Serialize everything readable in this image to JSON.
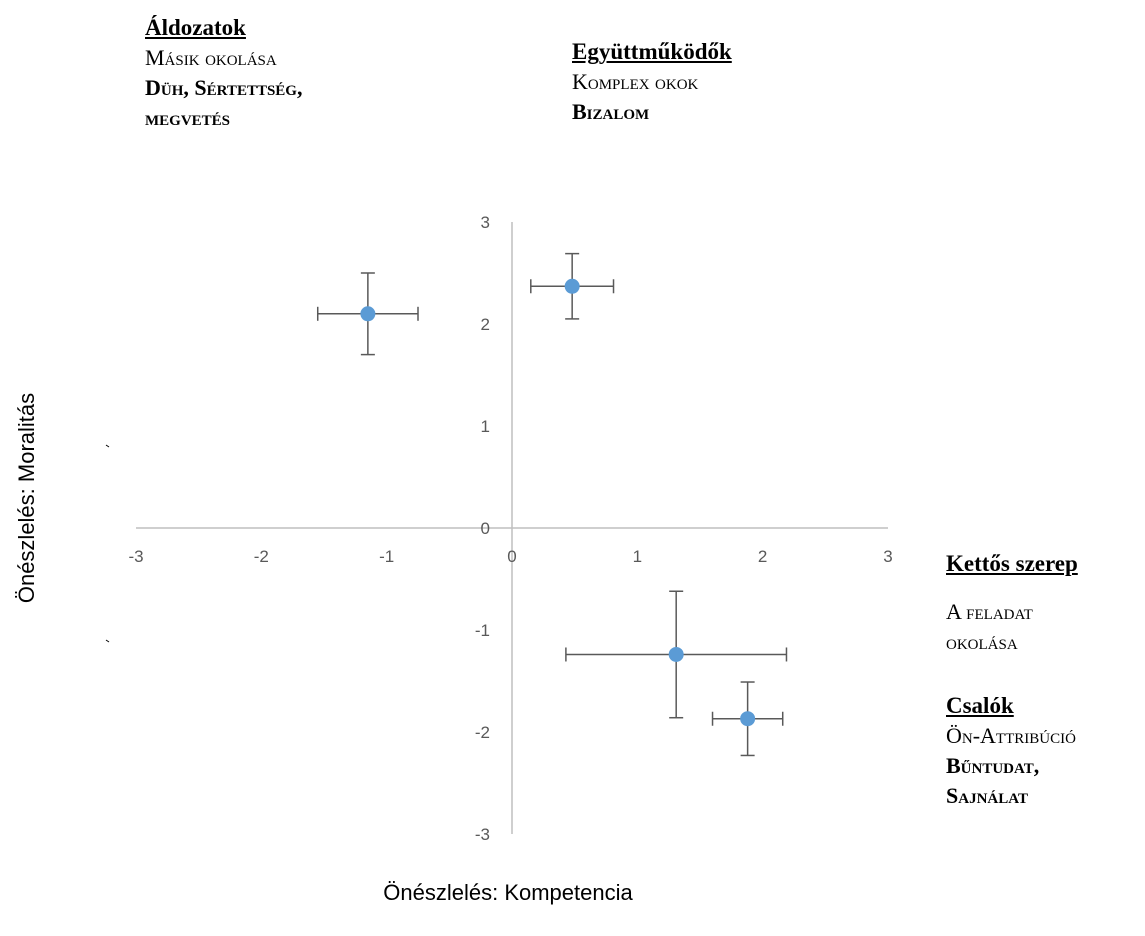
{
  "chart_data": {
    "type": "scatter",
    "xlabel": "Önészlelés: Kompetencia",
    "ylabel": "Önészlelés: Moralitás",
    "xlim": [
      -3,
      3
    ],
    "ylim": [
      -3,
      3
    ],
    "x_ticks": [
      "-3",
      "-2",
      "-1",
      "0",
      "1",
      "2",
      "3"
    ],
    "y_ticks": [
      "3",
      "2",
      "1",
      "0",
      "-1",
      "-2",
      "-3"
    ],
    "grid": false,
    "legend": "none",
    "marker_color": "#5B9BD5",
    "axis_color": "#BFBFBF",
    "errorbar_color": "#595959",
    "points": [
      {
        "x": -1.15,
        "y": 2.1,
        "x_err": 0.4,
        "y_err": 0.4
      },
      {
        "x": 0.48,
        "y": 2.37,
        "x_err": 0.33,
        "y_err": 0.32
      },
      {
        "x": 1.31,
        "y": -1.24,
        "x_err": 0.88,
        "y_err": 0.62
      },
      {
        "x": 1.88,
        "y": -1.87,
        "x_err": 0.28,
        "y_err": 0.36
      }
    ]
  },
  "quadrants": {
    "aldozatok": {
      "title": "Áldozatok",
      "line1": "Másik okolása",
      "line2": "Düh, Sértettség,",
      "line3": "megvetés"
    },
    "egyuttmukodok": {
      "title": "Együttműködők",
      "line1": "Komplex okok",
      "line2": "Bizalom"
    },
    "kettos": {
      "title": "Kettős szerep",
      "line1": "A feladat",
      "line2": "okolása"
    },
    "csalok": {
      "title": "Csalók",
      "line1": "Ön-Attribúció",
      "line2": "Bűntudat,",
      "line3": "Sajnálat"
    }
  }
}
